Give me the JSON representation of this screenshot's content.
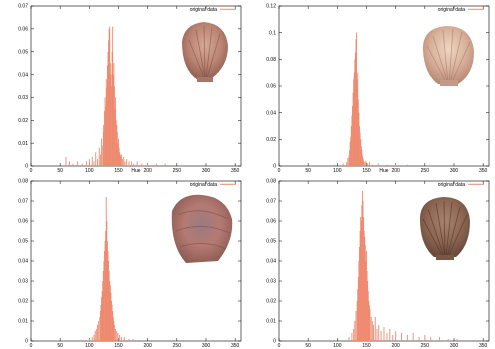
{
  "chart_data": [
    {
      "type": "bar",
      "legend": "original data",
      "xlabel": "Hue",
      "xlim": [
        0,
        360
      ],
      "ylim": [
        0,
        0.07
      ],
      "xticks": [
        0,
        50,
        100,
        150,
        200,
        250,
        300,
        350
      ],
      "yticks": [
        0,
        0.01,
        0.02,
        0.03,
        0.04,
        0.05,
        0.06,
        0.07
      ],
      "series": [
        {
          "x": [
            60,
            66,
            72,
            80,
            88,
            95,
            100,
            105,
            108,
            111,
            114,
            117,
            119,
            121,
            123,
            124,
            125,
            126,
            127,
            128,
            129,
            130,
            131,
            132,
            133,
            134,
            135,
            136,
            137,
            138,
            139,
            140,
            141,
            142,
            143,
            144,
            145,
            146,
            147,
            148,
            149,
            150,
            151,
            152,
            153,
            154,
            155,
            157,
            159,
            161,
            164,
            168,
            172,
            176,
            182,
            190,
            200,
            215,
            230
          ],
          "values": [
            0.004,
            0.002,
            0.001,
            0.002,
            0.001,
            0.002,
            0.003,
            0.004,
            0.002,
            0.006,
            0.003,
            0.008,
            0.005,
            0.012,
            0.009,
            0.018,
            0.015,
            0.024,
            0.03,
            0.026,
            0.038,
            0.034,
            0.044,
            0.05,
            0.055,
            0.06,
            0.061,
            0.045,
            0.04,
            0.035,
            0.05,
            0.061,
            0.04,
            0.045,
            0.035,
            0.025,
            0.03,
            0.02,
            0.018,
            0.015,
            0.01,
            0.012,
            0.008,
            0.006,
            0.005,
            0.004,
            0.005,
            0.003,
            0.004,
            0.002,
            0.003,
            0.002,
            0.002,
            0.001,
            0.002,
            0.001,
            0.001,
            0.001,
            0.001
          ]
        }
      ]
    },
    {
      "type": "bar",
      "legend": "original data",
      "xlabel": "Hue",
      "xlim": [
        0,
        360
      ],
      "ylim": [
        0,
        0.12
      ],
      "xticks": [
        0,
        50,
        100,
        150,
        200,
        250,
        300,
        350
      ],
      "yticks": [
        0,
        0.02,
        0.04,
        0.06,
        0.08,
        0.1,
        0.12
      ],
      "series": [
        {
          "x": [
            95,
            110,
            116,
            118,
            120,
            121,
            122,
            123,
            124,
            125,
            126,
            127,
            128,
            129,
            130,
            131,
            132,
            133,
            134,
            135,
            136,
            137,
            138,
            139,
            140,
            141,
            142,
            143,
            144,
            145,
            147,
            149,
            152,
            155,
            160,
            170,
            185,
            200,
            220
          ],
          "values": [
            0.001,
            0.002,
            0.003,
            0.006,
            0.008,
            0.012,
            0.018,
            0.022,
            0.03,
            0.038,
            0.045,
            0.055,
            0.065,
            0.07,
            0.08,
            0.085,
            0.095,
            0.1,
            0.065,
            0.07,
            0.05,
            0.04,
            0.03,
            0.025,
            0.02,
            0.015,
            0.012,
            0.008,
            0.006,
            0.004,
            0.003,
            0.004,
            0.002,
            0.003,
            0.001,
            0.002,
            0.001,
            0.001,
            0.001
          ]
        }
      ]
    },
    {
      "type": "bar",
      "legend": "original data",
      "xlabel": "",
      "xlim": [
        0,
        360
      ],
      "ylim": [
        0,
        0.08
      ],
      "xticks": [
        0,
        50,
        100,
        150,
        200,
        250,
        300,
        350
      ],
      "yticks": [
        0,
        0.01,
        0.02,
        0.03,
        0.04,
        0.05,
        0.06,
        0.07,
        0.08
      ],
      "series": [
        {
          "x": [
            100,
            105,
            108,
            110,
            112,
            114,
            116,
            118,
            119,
            120,
            121,
            122,
            123,
            124,
            125,
            126,
            127,
            128,
            129,
            130,
            131,
            132,
            133,
            134,
            135,
            136,
            137,
            138,
            139,
            140,
            141,
            142,
            143,
            145,
            147,
            149,
            152,
            155,
            160,
            168,
            175
          ],
          "values": [
            0.001,
            0.002,
            0.003,
            0.005,
            0.006,
            0.008,
            0.01,
            0.012,
            0.015,
            0.018,
            0.022,
            0.025,
            0.03,
            0.035,
            0.04,
            0.045,
            0.05,
            0.055,
            0.072,
            0.06,
            0.05,
            0.045,
            0.04,
            0.035,
            0.03,
            0.028,
            0.024,
            0.02,
            0.018,
            0.015,
            0.012,
            0.01,
            0.008,
            0.006,
            0.005,
            0.004,
            0.003,
            0.002,
            0.002,
            0.001,
            0.001
          ]
        }
      ]
    },
    {
      "type": "bar",
      "legend": "original data",
      "xlabel": "",
      "xlim": [
        0,
        360
      ],
      "ylim": [
        0,
        0.08
      ],
      "xticks": [
        0,
        50,
        100,
        150,
        200,
        250,
        300,
        350
      ],
      "yticks": [
        0,
        0.01,
        0.02,
        0.03,
        0.04,
        0.05,
        0.06,
        0.07,
        0.08
      ],
      "series": [
        {
          "x": [
            120,
            125,
            128,
            130,
            132,
            134,
            135,
            136,
            137,
            138,
            139,
            140,
            141,
            142,
            143,
            144,
            145,
            146,
            147,
            148,
            149,
            150,
            151,
            152,
            153,
            154,
            155,
            156,
            158,
            160,
            162,
            165,
            168,
            171,
            175,
            180,
            185,
            190,
            195,
            200,
            210,
            220,
            230,
            240,
            250,
            260,
            275,
            290,
            305
          ],
          "values": [
            0.002,
            0.004,
            0.006,
            0.01,
            0.015,
            0.02,
            0.026,
            0.032,
            0.04,
            0.047,
            0.055,
            0.062,
            0.06,
            0.068,
            0.075,
            0.07,
            0.062,
            0.055,
            0.052,
            0.048,
            0.04,
            0.045,
            0.035,
            0.03,
            0.025,
            0.02,
            0.018,
            0.016,
            0.012,
            0.01,
            0.008,
            0.012,
            0.006,
            0.008,
            0.005,
            0.007,
            0.004,
            0.006,
            0.003,
            0.005,
            0.004,
            0.003,
            0.004,
            0.002,
            0.003,
            0.002,
            0.002,
            0.001,
            0.001
          ]
        }
      ]
    }
  ]
}
